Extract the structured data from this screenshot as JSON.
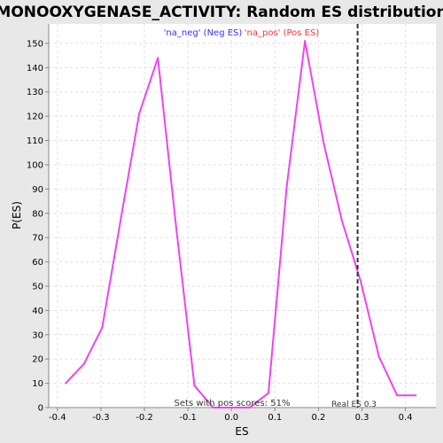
{
  "chart_data": {
    "type": "line",
    "title": "MONOOXYGENASE_ACTIVITY: Random ES distribution",
    "xlabel": "ES",
    "ylabel": "P(ES)",
    "xlim": [
      -0.42,
      0.47
    ],
    "ylim": [
      0,
      158
    ],
    "xticks": [
      -0.4,
      -0.3,
      -0.2,
      -0.1,
      0.0,
      0.1,
      0.2,
      0.3,
      0.4
    ],
    "xtick_labels": [
      "-0.4",
      "-0.3",
      "-0.2",
      "-0.1",
      "0.0",
      "0.1",
      "0.2",
      "0.3",
      "0.4"
    ],
    "yticks": [
      0,
      10,
      20,
      30,
      40,
      50,
      60,
      70,
      80,
      90,
      100,
      110,
      120,
      130,
      140,
      150
    ],
    "ytick_labels": [
      "0",
      "10",
      "20",
      "30",
      "40",
      "50",
      "60",
      "70",
      "80",
      "90",
      "100",
      "110",
      "120",
      "130",
      "140",
      "150"
    ],
    "grid": true,
    "legend": [
      {
        "label": "'na_neg' (Neg ES)",
        "color": "#3333ff"
      },
      {
        "label": "'na_pos' (Pos ES)",
        "color": "#ff3333"
      }
    ],
    "series": [
      {
        "name": "Random ES distribution",
        "color": "#ee44ee",
        "x": [
          -0.381,
          -0.339,
          -0.297,
          -0.254,
          -0.212,
          -0.169,
          -0.127,
          -0.085,
          -0.042,
          0.0,
          0.042,
          0.085,
          0.127,
          0.169,
          0.212,
          0.254,
          0.297,
          0.339,
          0.381,
          0.424
        ],
        "y": [
          10,
          18,
          33,
          78,
          121,
          144,
          74,
          9,
          0,
          0,
          0,
          6,
          91,
          151,
          109,
          77,
          52,
          21,
          5,
          5
        ]
      }
    ],
    "reference_line": {
      "x": 0.29,
      "label": "Real ES 0.3",
      "color": "#000000",
      "style": "dashed"
    },
    "annotation": "Sets with pos scores: 51%"
  }
}
